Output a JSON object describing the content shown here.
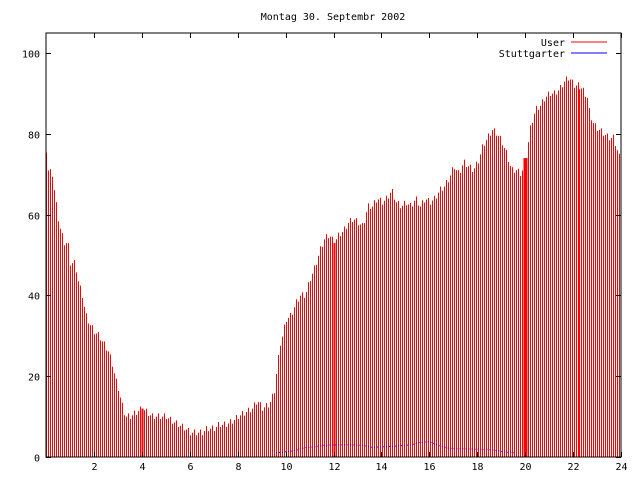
{
  "chart_data": {
    "type": "bar",
    "title": "Montag 30. Septembr 2002",
    "xlabel": "",
    "ylabel": "",
    "xlim": [
      0,
      24
    ],
    "ylim": [
      0,
      105
    ],
    "x_ticks": [
      "2",
      "4",
      "6",
      "8",
      "10",
      "12",
      "14",
      "16",
      "18",
      "20",
      "22",
      "24"
    ],
    "y_ticks": [
      "0",
      "20",
      "40",
      "60",
      "80",
      "100"
    ],
    "grid": false,
    "legend_position": "top-right",
    "series": [
      {
        "name": "User",
        "color": "#ff0000",
        "kind": "impulses",
        "anchors": [
          [
            0.0,
            76
          ],
          [
            0.08,
            71
          ],
          [
            0.25,
            70
          ],
          [
            0.4,
            63
          ],
          [
            0.5,
            59
          ],
          [
            0.6,
            56
          ],
          [
            0.75,
            53
          ],
          [
            0.9,
            53
          ],
          [
            1.0,
            48
          ],
          [
            1.2,
            48
          ],
          [
            1.35,
            43
          ],
          [
            1.5,
            40
          ],
          [
            1.65,
            35
          ],
          [
            1.8,
            33
          ],
          [
            2.0,
            31
          ],
          [
            2.2,
            30
          ],
          [
            2.4,
            28
          ],
          [
            2.6,
            26
          ],
          [
            2.75,
            23
          ],
          [
            2.9,
            19
          ],
          [
            3.0,
            17
          ],
          [
            3.15,
            13
          ],
          [
            3.3,
            10
          ],
          [
            3.5,
            10
          ],
          [
            3.75,
            11
          ],
          [
            4.0,
            12
          ],
          [
            4.2,
            11
          ],
          [
            4.4,
            10
          ],
          [
            5.0,
            10
          ],
          [
            5.2,
            9
          ],
          [
            5.5,
            8
          ],
          [
            5.8,
            7
          ],
          [
            6.0,
            6
          ],
          [
            6.5,
            6
          ],
          [
            6.7,
            7
          ],
          [
            7.0,
            7
          ],
          [
            7.2,
            8
          ],
          [
            7.5,
            8
          ],
          [
            7.8,
            9
          ],
          [
            8.0,
            10
          ],
          [
            8.3,
            11
          ],
          [
            8.6,
            12
          ],
          [
            8.8,
            14
          ],
          [
            9.0,
            12
          ],
          [
            9.3,
            13
          ],
          [
            9.5,
            16
          ],
          [
            9.6,
            21
          ],
          [
            9.75,
            28
          ],
          [
            9.85,
            30
          ],
          [
            10.0,
            34
          ],
          [
            10.2,
            35
          ],
          [
            10.4,
            38
          ],
          [
            10.6,
            40
          ],
          [
            10.8,
            40
          ],
          [
            11.0,
            44
          ],
          [
            11.2,
            47
          ],
          [
            11.4,
            51
          ],
          [
            11.6,
            54
          ],
          [
            11.8,
            55
          ],
          [
            12.0,
            53
          ],
          [
            12.2,
            55
          ],
          [
            12.4,
            56
          ],
          [
            12.6,
            58
          ],
          [
            12.8,
            59
          ],
          [
            13.0,
            58
          ],
          [
            13.2,
            57
          ],
          [
            13.4,
            62
          ],
          [
            13.6,
            62
          ],
          [
            13.8,
            64
          ],
          [
            14.0,
            63
          ],
          [
            14.2,
            64
          ],
          [
            14.4,
            66
          ],
          [
            14.6,
            63
          ],
          [
            14.8,
            62
          ],
          [
            15.0,
            63
          ],
          [
            15.2,
            62
          ],
          [
            15.4,
            64
          ],
          [
            15.6,
            62
          ],
          [
            15.8,
            64
          ],
          [
            16.0,
            63
          ],
          [
            16.2,
            64
          ],
          [
            16.4,
            66
          ],
          [
            16.6,
            67
          ],
          [
            16.8,
            69
          ],
          [
            17.0,
            72
          ],
          [
            17.2,
            70
          ],
          [
            17.4,
            73
          ],
          [
            17.6,
            72
          ],
          [
            17.8,
            71
          ],
          [
            18.0,
            73
          ],
          [
            18.2,
            77
          ],
          [
            18.4,
            79
          ],
          [
            18.6,
            81
          ],
          [
            18.8,
            80
          ],
          [
            19.0,
            78
          ],
          [
            19.2,
            75
          ],
          [
            19.4,
            71
          ],
          [
            19.6,
            71
          ],
          [
            19.8,
            70
          ],
          [
            20.0,
            74
          ],
          [
            20.2,
            82
          ],
          [
            20.4,
            86
          ],
          [
            20.6,
            87
          ],
          [
            20.8,
            89
          ],
          [
            21.0,
            90
          ],
          [
            21.2,
            90
          ],
          [
            21.4,
            91
          ],
          [
            21.6,
            93
          ],
          [
            21.8,
            94
          ],
          [
            22.0,
            92
          ],
          [
            22.2,
            92
          ],
          [
            22.4,
            91
          ],
          [
            22.6,
            89
          ],
          [
            22.7,
            85
          ],
          [
            22.9,
            82
          ],
          [
            23.1,
            81
          ],
          [
            23.3,
            80
          ],
          [
            23.5,
            79
          ],
          [
            23.7,
            79
          ],
          [
            23.85,
            76
          ],
          [
            24.0,
            73
          ]
        ]
      },
      {
        "name": "Stuttgarter",
        "color": "#0000ff",
        "kind": "dotted-line",
        "points": [
          [
            9.6,
            1.0
          ],
          [
            10.0,
            1.3
          ],
          [
            10.4,
            1.6
          ],
          [
            10.8,
            2.3
          ],
          [
            11.2,
            2.5
          ],
          [
            11.6,
            2.9
          ],
          [
            12.0,
            3.0
          ],
          [
            12.4,
            3.0
          ],
          [
            12.8,
            3.0
          ],
          [
            13.2,
            2.9
          ],
          [
            13.6,
            2.4
          ],
          [
            14.0,
            2.5
          ],
          [
            14.4,
            2.6
          ],
          [
            14.8,
            2.8
          ],
          [
            15.2,
            3.0
          ],
          [
            15.6,
            3.6
          ],
          [
            16.0,
            3.8
          ],
          [
            16.4,
            2.8
          ],
          [
            16.8,
            2.2
          ],
          [
            17.2,
            2.0
          ],
          [
            17.6,
            2.0
          ],
          [
            18.0,
            1.9
          ],
          [
            18.4,
            1.9
          ],
          [
            18.8,
            1.6
          ],
          [
            19.2,
            1.2
          ],
          [
            19.6,
            1.0
          ]
        ]
      }
    ]
  }
}
